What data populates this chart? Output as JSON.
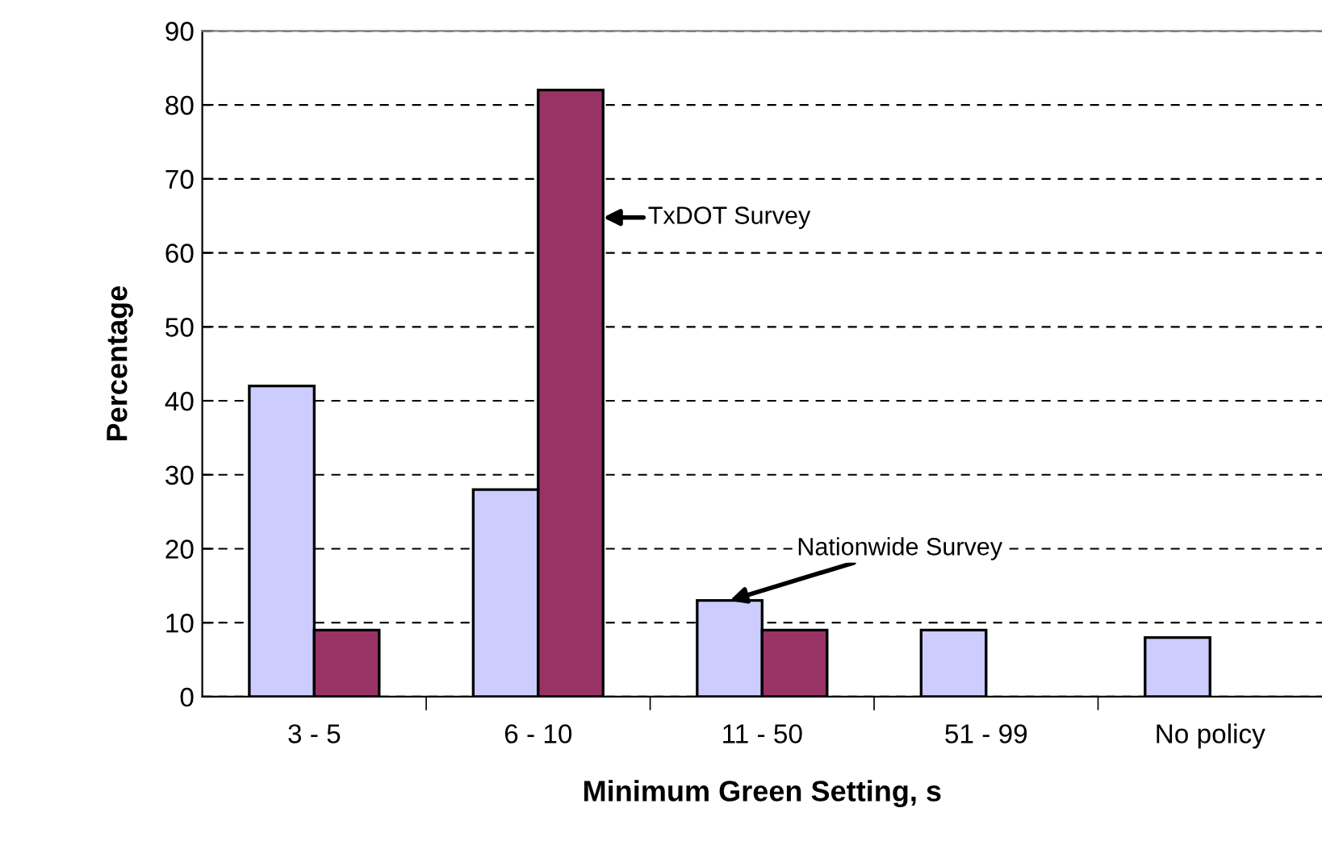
{
  "chart_data": {
    "type": "bar",
    "xlabel": "Minimum Green Setting, s",
    "ylabel": "Percentage",
    "categories": [
      "3 - 5",
      "6 - 10",
      "11 - 50",
      "51 - 99",
      "No policy"
    ],
    "series": [
      {
        "name": "Nationwide Survey",
        "color": "#ccccff",
        "values": [
          42,
          28,
          13,
          9,
          8
        ]
      },
      {
        "name": "TxDOT Survey",
        "color": "#993366",
        "values": [
          9,
          82,
          9,
          null,
          null
        ]
      }
    ],
    "ylim": [
      0,
      90
    ],
    "yticks": [
      0,
      10,
      20,
      30,
      40,
      50,
      60,
      70,
      80,
      90
    ],
    "grid": "y"
  }
}
